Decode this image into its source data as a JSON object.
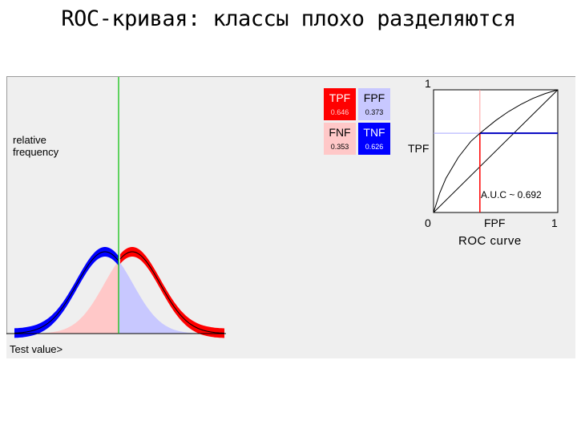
{
  "slide": {
    "title": "ROC-кривая: классы плохо разделяются"
  },
  "distribution": {
    "ylabel_line1": "relative",
    "ylabel_line2": "frequency",
    "xlabel": "Test value>",
    "colors": {
      "positive": "#ff0000",
      "negative": "#0000ff",
      "pink_fill": "#ffc8c8",
      "lavender_fill": "#c8c8ff",
      "threshold": "#00c000"
    }
  },
  "confusion": {
    "tpf": {
      "label": "TPF",
      "value": "0.646"
    },
    "fpf": {
      "label": "FPF",
      "value": "0.373"
    },
    "fnf": {
      "label": "FNF",
      "value": "0.353"
    },
    "tnf": {
      "label": "TNF",
      "value": "0.626"
    }
  },
  "roc": {
    "y_max": "1",
    "origin": "0",
    "x_max": "1",
    "ylabel": "TPF",
    "xlabel": "FPF",
    "caption": "ROC curve",
    "auc_text": "A.U.C ~ 0.692",
    "operating_point": {
      "fpf": 0.373,
      "tpf": 0.646
    }
  },
  "chart_data": {
    "type": "line",
    "xlabel": "FPF",
    "ylabel": "TPF",
    "xlim": [
      0,
      1
    ],
    "ylim": [
      0,
      1
    ],
    "series": [
      {
        "x": [
          0,
          0.05,
          0.1,
          0.2,
          0.3,
          0.373,
          0.5,
          0.6,
          0.7,
          0.8,
          0.9,
          1
        ],
        "y": [
          0,
          0.16,
          0.28,
          0.45,
          0.58,
          0.646,
          0.75,
          0.82,
          0.88,
          0.93,
          0.97,
          1
        ]
      }
    ]
  }
}
